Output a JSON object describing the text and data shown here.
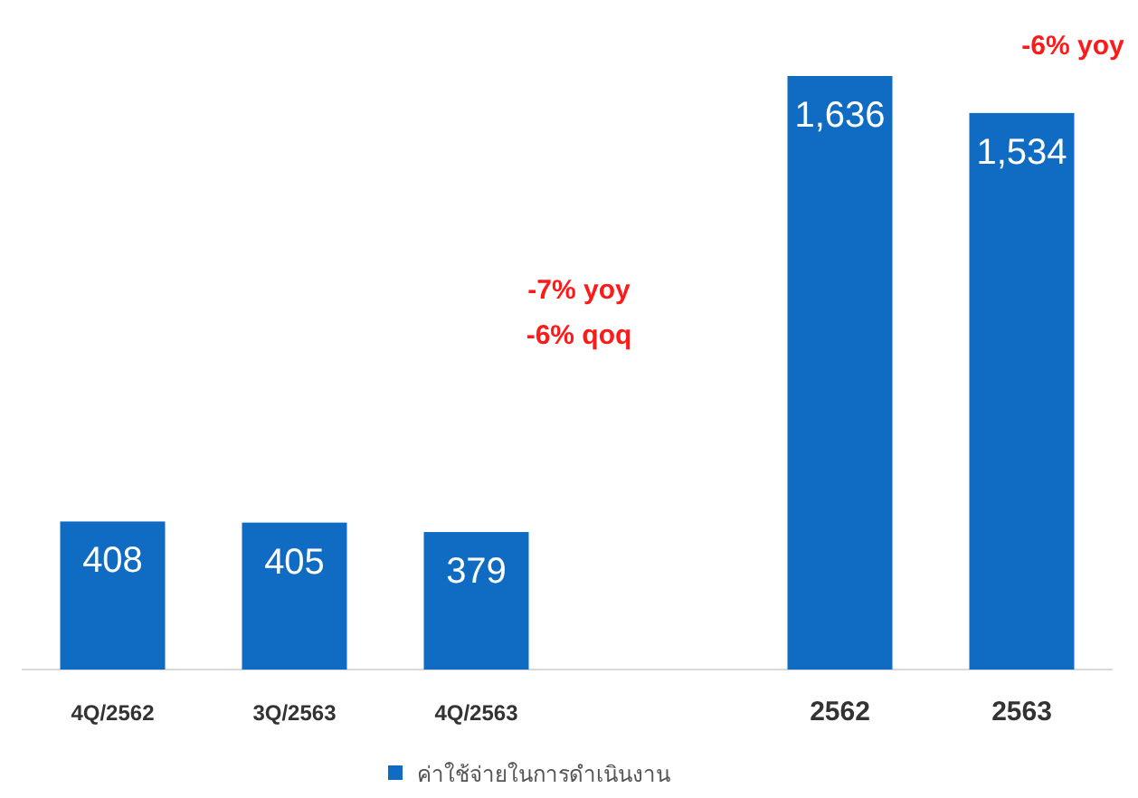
{
  "chart_data": {
    "type": "bar",
    "categories": [
      "4Q/2562",
      "3Q/2563",
      "4Q/2563",
      null,
      "2562",
      "2563"
    ],
    "series": [
      {
        "name": "ค่าใช้จ่ายในการดำเนินงาน",
        "color": "#0f6cc2",
        "values": [
          408,
          405,
          379,
          null,
          1636,
          1534
        ],
        "value_labels": [
          "408",
          "405",
          "379",
          null,
          "1,636",
          "1,534"
        ]
      }
    ],
    "annotations": [
      "-7% yoy",
      "-6% qoq",
      "-6% yoy"
    ],
    "legend": "bottom"
  }
}
